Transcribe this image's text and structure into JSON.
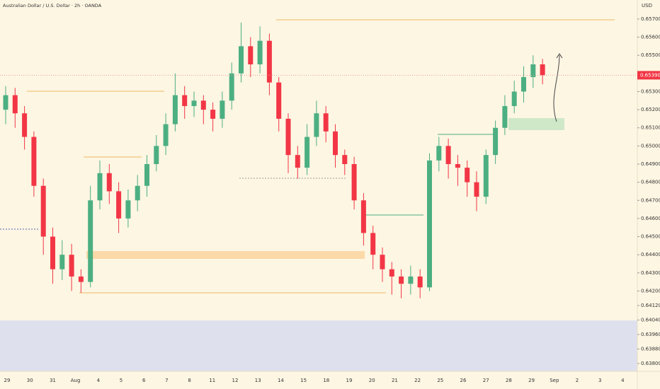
{
  "chart_data": {
    "type": "candlestick",
    "title": "Australian Dollar / U.S. Dollar · 2h · OANDA",
    "currency": "USD",
    "up_color": "#4caf82",
    "down_color": "#f23645",
    "ylim": [
      0.63757,
      0.65805
    ],
    "yticks": [
      {
        "value": 0.657,
        "label": "0.65700"
      },
      {
        "value": 0.656,
        "label": "0.65600"
      },
      {
        "value": 0.655,
        "label": "0.65500"
      },
      {
        "value": 0.653,
        "label": "0.65300"
      },
      {
        "value": 0.652,
        "label": "0.65200"
      },
      {
        "value": 0.651,
        "label": "0.65100"
      },
      {
        "value": 0.65,
        "label": "0.65000"
      },
      {
        "value": 0.649,
        "label": "0.64900"
      },
      {
        "value": 0.648,
        "label": "0.64800"
      },
      {
        "value": 0.647,
        "label": "0.64700"
      },
      {
        "value": 0.646,
        "label": "0.64600"
      },
      {
        "value": 0.645,
        "label": "0.64500"
      },
      {
        "value": 0.644,
        "label": "0.64400"
      },
      {
        "value": 0.643,
        "label": "0.64300"
      },
      {
        "value": 0.642,
        "label": "0.64200"
      },
      {
        "value": 0.6412,
        "label": "0.64120"
      },
      {
        "value": 0.6404,
        "label": "0.64040"
      },
      {
        "value": 0.6396,
        "label": "0.63960"
      },
      {
        "value": 0.6388,
        "label": "0.63880"
      },
      {
        "value": 0.638,
        "label": "0.63800"
      }
    ],
    "last_price": {
      "value": 0.6539,
      "label": "0.65390"
    },
    "x_labels": [
      "29",
      "30",
      "31",
      "Aug",
      "4",
      "5",
      "6",
      "7",
      "8",
      "11",
      "12",
      "13",
      "14",
      "15",
      "18",
      "19",
      "20",
      "21",
      "22",
      "25",
      "26",
      "27",
      "28",
      "29",
      "Sep",
      "2",
      "3",
      "4"
    ],
    "open": [
      0.652,
      0.6528,
      0.6518,
      0.6505,
      0.6478,
      0.645,
      0.6432,
      0.644,
      0.6428,
      0.6425,
      0.647,
      0.6485,
      0.6475,
      0.646,
      0.647,
      0.6478,
      0.649,
      0.65,
      0.6512,
      0.6528,
      0.6522,
      0.6525,
      0.652,
      0.6515,
      0.6525,
      0.654,
      0.6555,
      0.6545,
      0.6558,
      0.6535,
      0.6515,
      0.6495,
      0.6488,
      0.6505,
      0.6518,
      0.6508,
      0.6495,
      0.649,
      0.647,
      0.6452,
      0.644,
      0.6432,
      0.6428,
      0.6424,
      0.6428,
      0.6422,
      0.6492,
      0.65,
      0.649,
      0.6488,
      0.648,
      0.6472,
      0.6495,
      0.651,
      0.6522,
      0.653,
      0.6538,
      0.6545
    ],
    "high": [
      0.6533,
      0.6532,
      0.6522,
      0.6508,
      0.6482,
      0.6455,
      0.6448,
      0.6446,
      0.6432,
      0.6478,
      0.6492,
      0.649,
      0.648,
      0.6476,
      0.6484,
      0.6495,
      0.6506,
      0.6518,
      0.654,
      0.6533,
      0.653,
      0.6528,
      0.6524,
      0.653,
      0.6546,
      0.6568,
      0.656,
      0.6566,
      0.6562,
      0.6538,
      0.6518,
      0.65,
      0.6512,
      0.6525,
      0.6522,
      0.6512,
      0.6498,
      0.6494,
      0.6474,
      0.6456,
      0.6444,
      0.6436,
      0.6432,
      0.6434,
      0.6432,
      0.6496,
      0.6505,
      0.6504,
      0.6495,
      0.6492,
      0.6486,
      0.6498,
      0.6514,
      0.6528,
      0.6536,
      0.6544,
      0.655,
      0.6548
    ],
    "low": [
      0.6512,
      0.651,
      0.6498,
      0.6472,
      0.644,
      0.6424,
      0.6426,
      0.642,
      0.6419,
      0.6422,
      0.6465,
      0.6468,
      0.6452,
      0.6455,
      0.6464,
      0.6472,
      0.6486,
      0.6495,
      0.6508,
      0.6515,
      0.6516,
      0.6512,
      0.6508,
      0.651,
      0.652,
      0.6535,
      0.6538,
      0.654,
      0.6528,
      0.6508,
      0.6485,
      0.6482,
      0.6484,
      0.65,
      0.6502,
      0.6488,
      0.6484,
      0.6465,
      0.6445,
      0.6432,
      0.6425,
      0.6418,
      0.6416,
      0.6418,
      0.6416,
      0.642,
      0.6486,
      0.6482,
      0.6478,
      0.6472,
      0.6464,
      0.6468,
      0.649,
      0.6506,
      0.6518,
      0.6524,
      0.6532,
      0.6534
    ],
    "close": [
      0.6528,
      0.6518,
      0.6505,
      0.6478,
      0.645,
      0.6432,
      0.644,
      0.6428,
      0.6425,
      0.647,
      0.6485,
      0.6475,
      0.646,
      0.647,
      0.6478,
      0.649,
      0.65,
      0.6512,
      0.6528,
      0.6522,
      0.6525,
      0.652,
      0.6515,
      0.6525,
      0.654,
      0.6555,
      0.6545,
      0.6558,
      0.6535,
      0.6515,
      0.6495,
      0.6488,
      0.6505,
      0.6518,
      0.6508,
      0.6495,
      0.649,
      0.647,
      0.6452,
      0.644,
      0.6432,
      0.6428,
      0.6424,
      0.6428,
      0.6422,
      0.6492,
      0.65,
      0.649,
      0.6488,
      0.648,
      0.6472,
      0.6495,
      0.651,
      0.6522,
      0.653,
      0.6538,
      0.6545,
      0.6539
    ]
  }
}
